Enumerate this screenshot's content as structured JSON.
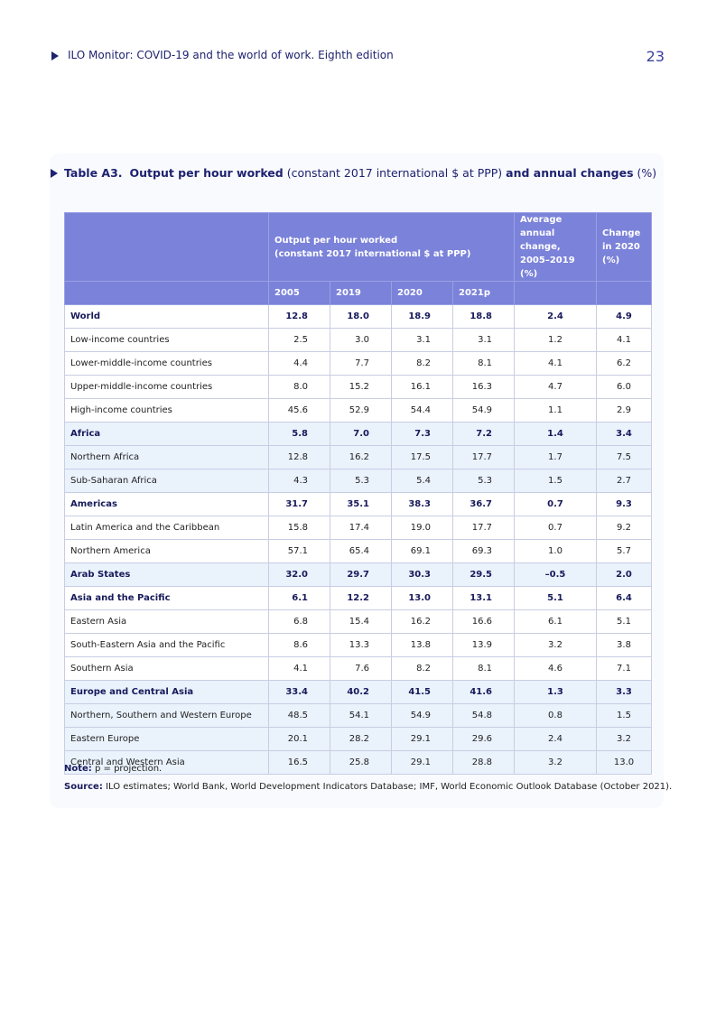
{
  "header": {
    "running_title": "ILO Monitor: COVID-19 and the world of work. Eighth edition",
    "page_number": "23"
  },
  "table": {
    "caption": {
      "label": "Table A3.",
      "bold1": "Output per hour worked",
      "plain1": "(constant 2017 international $ at PPP)",
      "bold2": "and annual changes",
      "plain2": "(%)"
    },
    "group_header": [
      "Output per hour worked",
      "(constant 2017 international $ at PPP)"
    ],
    "avg_header": [
      "Average",
      "annual change,",
      "2005–2019 (%)"
    ],
    "change_header": [
      "Change",
      "in 2020",
      "(%)"
    ],
    "years": [
      "2005",
      "2019",
      "2020",
      "2021p"
    ],
    "rows": [
      {
        "label": "World",
        "bold": true,
        "shaded": false,
        "cells": [
          "12.8",
          "18.0",
          "18.9",
          "18.8",
          "2.4",
          "4.9"
        ]
      },
      {
        "label": "Low-income countries",
        "bold": false,
        "shaded": false,
        "cells": [
          "2.5",
          "3.0",
          "3.1",
          "3.1",
          "1.2",
          "4.1"
        ]
      },
      {
        "label": "Lower-middle-income countries",
        "bold": false,
        "shaded": false,
        "cells": [
          "4.4",
          "7.7",
          "8.2",
          "8.1",
          "4.1",
          "6.2"
        ]
      },
      {
        "label": "Upper-middle-income countries",
        "bold": false,
        "shaded": false,
        "cells": [
          "8.0",
          "15.2",
          "16.1",
          "16.3",
          "4.7",
          "6.0"
        ]
      },
      {
        "label": "High-income countries",
        "bold": false,
        "shaded": false,
        "cells": [
          "45.6",
          "52.9",
          "54.4",
          "54.9",
          "1.1",
          "2.9"
        ]
      },
      {
        "label": "Africa",
        "bold": true,
        "shaded": true,
        "cells": [
          "5.8",
          "7.0",
          "7.3",
          "7.2",
          "1.4",
          "3.4"
        ]
      },
      {
        "label": "Northern Africa",
        "bold": false,
        "shaded": true,
        "cells": [
          "12.8",
          "16.2",
          "17.5",
          "17.7",
          "1.7",
          "7.5"
        ]
      },
      {
        "label": "Sub-Saharan Africa",
        "bold": false,
        "shaded": true,
        "cells": [
          "4.3",
          "5.3",
          "5.4",
          "5.3",
          "1.5",
          "2.7"
        ]
      },
      {
        "label": "Americas",
        "bold": true,
        "shaded": false,
        "cells": [
          "31.7",
          "35.1",
          "38.3",
          "36.7",
          "0.7",
          "9.3"
        ]
      },
      {
        "label": "Latin America and the Caribbean",
        "bold": false,
        "shaded": false,
        "cells": [
          "15.8",
          "17.4",
          "19.0",
          "17.7",
          "0.7",
          "9.2"
        ]
      },
      {
        "label": "Northern America",
        "bold": false,
        "shaded": false,
        "cells": [
          "57.1",
          "65.4",
          "69.1",
          "69.3",
          "1.0",
          "5.7"
        ]
      },
      {
        "label": "Arab States",
        "bold": true,
        "shaded": true,
        "cells": [
          "32.0",
          "29.7",
          "30.3",
          "29.5",
          "–0.5",
          "2.0"
        ]
      },
      {
        "label": "Asia and the Pacific",
        "bold": true,
        "shaded": false,
        "cells": [
          "6.1",
          "12.2",
          "13.0",
          "13.1",
          "5.1",
          "6.4"
        ]
      },
      {
        "label": "Eastern Asia",
        "bold": false,
        "shaded": false,
        "cells": [
          "6.8",
          "15.4",
          "16.2",
          "16.6",
          "6.1",
          "5.1"
        ]
      },
      {
        "label": "South-Eastern Asia and the Pacific",
        "bold": false,
        "shaded": false,
        "cells": [
          "8.6",
          "13.3",
          "13.8",
          "13.9",
          "3.2",
          "3.8"
        ]
      },
      {
        "label": "Southern Asia",
        "bold": false,
        "shaded": false,
        "cells": [
          "4.1",
          "7.6",
          "8.2",
          "8.1",
          "4.6",
          "7.1"
        ]
      },
      {
        "label": "Europe and Central Asia",
        "bold": true,
        "shaded": true,
        "cells": [
          "33.4",
          "40.2",
          "41.5",
          "41.6",
          "1.3",
          "3.3"
        ]
      },
      {
        "label": "Northern, Southern and Western Europe",
        "bold": false,
        "shaded": true,
        "cells": [
          "48.5",
          "54.1",
          "54.9",
          "54.8",
          "0.8",
          "1.5"
        ]
      },
      {
        "label": "Eastern Europe",
        "bold": false,
        "shaded": true,
        "cells": [
          "20.1",
          "28.2",
          "29.1",
          "29.6",
          "2.4",
          "3.2"
        ]
      },
      {
        "label": "Central and Western Asia",
        "bold": false,
        "shaded": true,
        "cells": [
          "16.5",
          "25.8",
          "29.1",
          "28.8",
          "3.2",
          "13.0"
        ]
      }
    ],
    "note": {
      "label": "Note:",
      "text": "p = projection."
    },
    "source": {
      "label": "Source:",
      "text": "ILO estimates; World Bank, World Development Indicators Database; IMF, World Economic Outlook Database (October 2021)."
    }
  }
}
